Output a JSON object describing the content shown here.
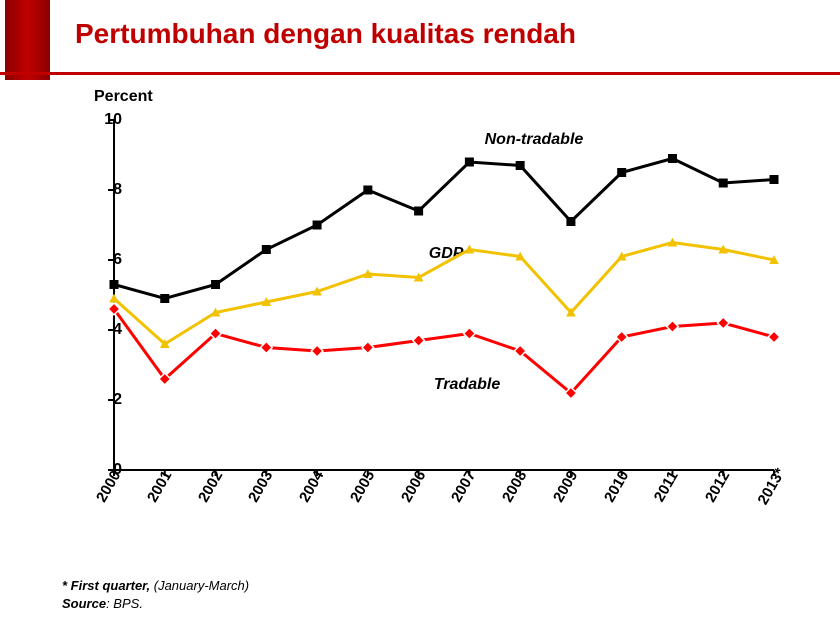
{
  "title": "Pertumbuhan dengan kualitas rendah",
  "chart": {
    "type": "line",
    "ylabel": "Percent",
    "ylim": [
      0,
      10
    ],
    "ytick_step": 2,
    "yticks": [
      0,
      2,
      4,
      6,
      8,
      10
    ],
    "xlabels": [
      "2000",
      "2001",
      "2002",
      "2003",
      "2004",
      "2005",
      "2006",
      "2007",
      "2008",
      "2009",
      "2010",
      "2011",
      "2012",
      "2013*"
    ],
    "title_fontsize": 28,
    "label_fontsize": 16,
    "tick_fontsize": 16,
    "xtick_rotation": -60,
    "background_color": "#ffffff",
    "axis_color": "#000000",
    "tick_mark_color": "#000000",
    "plot_border": true,
    "series": [
      {
        "name": "Non-tradable",
        "label": "Non-tradable",
        "color": "#000000",
        "values": [
          5.3,
          4.9,
          5.3,
          6.3,
          7.0,
          8.0,
          7.4,
          8.8,
          8.7,
          7.1,
          8.5,
          8.9,
          8.2,
          8.3
        ],
        "line_width": 3,
        "marker": "square",
        "marker_size": 9,
        "marker_fill": "#000000",
        "label_pos": {
          "x_index": 7.3,
          "y": 9.4
        }
      },
      {
        "name": "GDP",
        "label": "GDP",
        "color": "#f2c200",
        "values": [
          4.9,
          3.6,
          4.5,
          4.8,
          5.1,
          5.6,
          5.5,
          6.3,
          6.1,
          4.5,
          6.1,
          6.5,
          6.3,
          6.0
        ],
        "line_width": 3,
        "marker": "triangle",
        "marker_size": 9,
        "marker_fill": "#f2c200",
        "label_pos": {
          "x_index": 6.2,
          "y": 6.15
        }
      },
      {
        "name": "Tradable",
        "label": "Tradable",
        "color": "#ff0000",
        "values": [
          4.6,
          2.6,
          3.9,
          3.5,
          3.4,
          3.5,
          3.7,
          3.9,
          3.4,
          2.2,
          3.8,
          4.1,
          4.2,
          3.8
        ],
        "line_width": 3,
        "marker": "diamond",
        "marker_size": 9,
        "marker_fill": "#ff0000",
        "marker_stroke": "#ffffff",
        "label_pos": {
          "x_index": 6.3,
          "y": 2.4
        }
      }
    ]
  },
  "footnote": {
    "line1_bold": "* First quarter,",
    "line1_rest": " (January-March)",
    "line2_bold": "Source",
    "line2_rest": ": BPS."
  }
}
